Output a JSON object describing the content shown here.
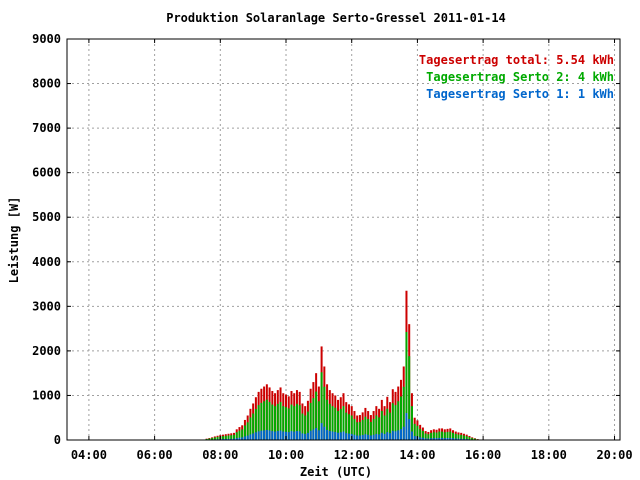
{
  "chart_data": {
    "type": "bar",
    "title": "Produktion Solaranlage Serto-Gressel 2011-01-14",
    "xlabel": "Zeit (UTC)",
    "ylabel": "Leistung [W]",
    "xlim": [
      "03:20",
      "20:10"
    ],
    "ylim": [
      0,
      9000
    ],
    "grid": true,
    "legend": "top-right",
    "y_ticks": [
      "0",
      "1000",
      "2000",
      "3000",
      "4000",
      "5000",
      "6000",
      "7000",
      "8000",
      "9000"
    ],
    "x_ticks": [
      "04:00",
      "06:00",
      "08:00",
      "10:00",
      "12:00",
      "14:00",
      "16:00",
      "18:00",
      "20:00"
    ],
    "x": [
      "07:35",
      "07:40",
      "07:45",
      "07:50",
      "07:55",
      "08:00",
      "08:05",
      "08:10",
      "08:15",
      "08:20",
      "08:25",
      "08:30",
      "08:35",
      "08:40",
      "08:45",
      "08:50",
      "08:55",
      "09:00",
      "09:05",
      "09:10",
      "09:15",
      "09:20",
      "09:25",
      "09:30",
      "09:35",
      "09:40",
      "09:45",
      "09:50",
      "09:55",
      "10:00",
      "10:05",
      "10:10",
      "10:15",
      "10:20",
      "10:25",
      "10:30",
      "10:35",
      "10:40",
      "10:45",
      "10:50",
      "10:55",
      "11:00",
      "11:05",
      "11:10",
      "11:15",
      "11:20",
      "11:25",
      "11:30",
      "11:35",
      "11:40",
      "11:45",
      "11:50",
      "11:55",
      "12:00",
      "12:05",
      "12:10",
      "12:15",
      "12:20",
      "12:25",
      "12:30",
      "12:35",
      "12:40",
      "12:45",
      "12:50",
      "12:55",
      "13:00",
      "13:05",
      "13:10",
      "13:15",
      "13:20",
      "13:25",
      "13:30",
      "13:35",
      "13:40",
      "13:45",
      "13:50",
      "13:55",
      "14:00",
      "14:05",
      "14:10",
      "14:15",
      "14:20",
      "14:25",
      "14:30",
      "14:35",
      "14:40",
      "14:45",
      "14:50",
      "14:55",
      "15:00",
      "15:05",
      "15:10",
      "15:15",
      "15:20",
      "15:25",
      "15:30",
      "15:35",
      "15:40",
      "15:45",
      "15:50"
    ],
    "series": [
      {
        "name": "Tagesertrag total: 5.54 kWh",
        "values": [
          30,
          45,
          60,
          80,
          95,
          110,
          120,
          130,
          140,
          150,
          160,
          240,
          290,
          330,
          450,
          550,
          700,
          820,
          960,
          1080,
          1150,
          1200,
          1250,
          1180,
          1100,
          1050,
          1120,
          1180,
          1050,
          1020,
          980,
          1100,
          1050,
          1120,
          1080,
          820,
          760,
          880,
          1150,
          1300,
          1500,
          1200,
          2100,
          1650,
          1250,
          1120,
          1050,
          1000,
          900,
          960,
          1050,
          850,
          800,
          760,
          650,
          550,
          560,
          620,
          720,
          650,
          560,
          650,
          760,
          700,
          900,
          760,
          970,
          850,
          1140,
          1080,
          1200,
          1350,
          1650,
          3350,
          2600,
          1050,
          500,
          440,
          340,
          280,
          200,
          180,
          220,
          240,
          230,
          260,
          260,
          240,
          250,
          260,
          220,
          190,
          170,
          160,
          140,
          120,
          90,
          60,
          40,
          20
        ]
      },
      {
        "name": "Tagesertrag Serto 2: 4 kWh",
        "values": [
          22,
          33,
          44,
          58,
          69,
          80,
          87,
          94,
          101,
          108,
          116,
          174,
          210,
          239,
          326,
          398,
          507,
          594,
          695,
          782,
          833,
          869,
          905,
          854,
          796,
          760,
          811,
          854,
          760,
          738,
          709,
          796,
          760,
          811,
          782,
          594,
          550,
          637,
          833,
          941,
          1086,
          869,
          1520,
          1195,
          905,
          811,
          760,
          724,
          652,
          695,
          760,
          615,
          579,
          550,
          471,
          398,
          405,
          449,
          521,
          471,
          405,
          471,
          550,
          507,
          652,
          550,
          702,
          615,
          825,
          782,
          869,
          977,
          1195,
          2425,
          1882,
          760,
          362,
          319,
          246,
          203,
          145,
          130,
          159,
          174,
          167,
          188,
          188,
          174,
          181,
          188,
          159,
          138,
          123,
          116,
          101,
          87,
          65,
          43,
          29,
          14
        ]
      },
      {
        "name": "Tagesertrag Serto 1: 1 kWh",
        "values": [
          5,
          8,
          11,
          14,
          17,
          20,
          22,
          23,
          25,
          27,
          29,
          43,
          52,
          60,
          81,
          99,
          126,
          148,
          173,
          195,
          208,
          217,
          226,
          213,
          199,
          190,
          202,
          213,
          190,
          184,
          177,
          199,
          190,
          202,
          195,
          148,
          137,
          159,
          208,
          235,
          271,
          217,
          379,
          298,
          226,
          202,
          190,
          181,
          163,
          173,
          190,
          153,
          144,
          137,
          117,
          99,
          101,
          112,
          130,
          117,
          101,
          117,
          137,
          126,
          163,
          137,
          175,
          153,
          206,
          195,
          217,
          244,
          298,
          605,
          469,
          190,
          90,
          79,
          61,
          51,
          36,
          32,
          40,
          43,
          42,
          47,
          47,
          43,
          45,
          47,
          40,
          34,
          31,
          29,
          25,
          22,
          16,
          11,
          7,
          4
        ]
      }
    ],
    "colors": {
      "total": "#cc0000",
      "serto2": "#00aa00",
      "serto1": "#0066cc",
      "grid": "#a0a0a0"
    }
  }
}
